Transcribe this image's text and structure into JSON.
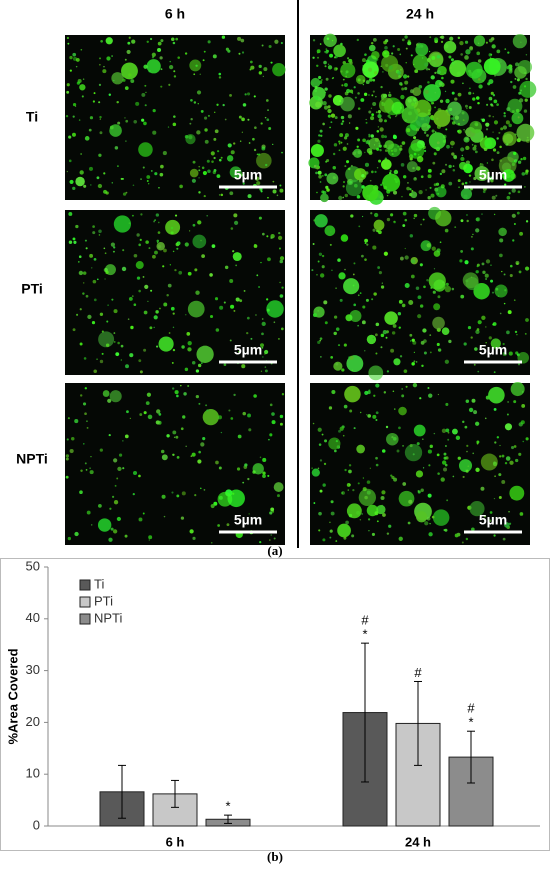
{
  "panel_a": {
    "columns": [
      "6 h",
      "24 h"
    ],
    "rows": [
      "Ti",
      "PTi",
      "NPTi"
    ],
    "scale_bars": [
      [
        "5µm",
        "5µm"
      ],
      [
        "5µm",
        "5µm"
      ],
      [
        "5µm",
        "5µm"
      ]
    ],
    "caption": "(a)"
  },
  "chart_data": {
    "type": "bar",
    "ylabel": "%Area Covered",
    "categories": [
      "6 h",
      "24 h"
    ],
    "series": [
      {
        "name": "Ti",
        "color": "#595959",
        "values": [
          6.6,
          21.9
        ],
        "errors": [
          5.1,
          13.4
        ]
      },
      {
        "name": "PTi",
        "color": "#c8c8c8",
        "values": [
          6.2,
          19.8
        ],
        "errors": [
          2.6,
          8.1
        ]
      },
      {
        "name": "NPTi",
        "color": "#8c8c8c",
        "values": [
          1.3,
          13.3
        ],
        "errors": [
          0.8,
          5.0
        ]
      }
    ],
    "annotations": [
      {
        "series": 2,
        "category": 0,
        "text": "*"
      },
      {
        "series": 0,
        "category": 1,
        "text": "*"
      },
      {
        "series": 0,
        "category": 1,
        "text": "#"
      },
      {
        "series": 1,
        "category": 1,
        "text": "#"
      },
      {
        "series": 2,
        "category": 1,
        "text": "*"
      },
      {
        "series": 2,
        "category": 1,
        "text": "#"
      }
    ],
    "ylim": [
      0,
      50
    ],
    "yticks": [
      0,
      10,
      20,
      30,
      40,
      50
    ],
    "legend": "upper-left",
    "caption": "(b)"
  }
}
